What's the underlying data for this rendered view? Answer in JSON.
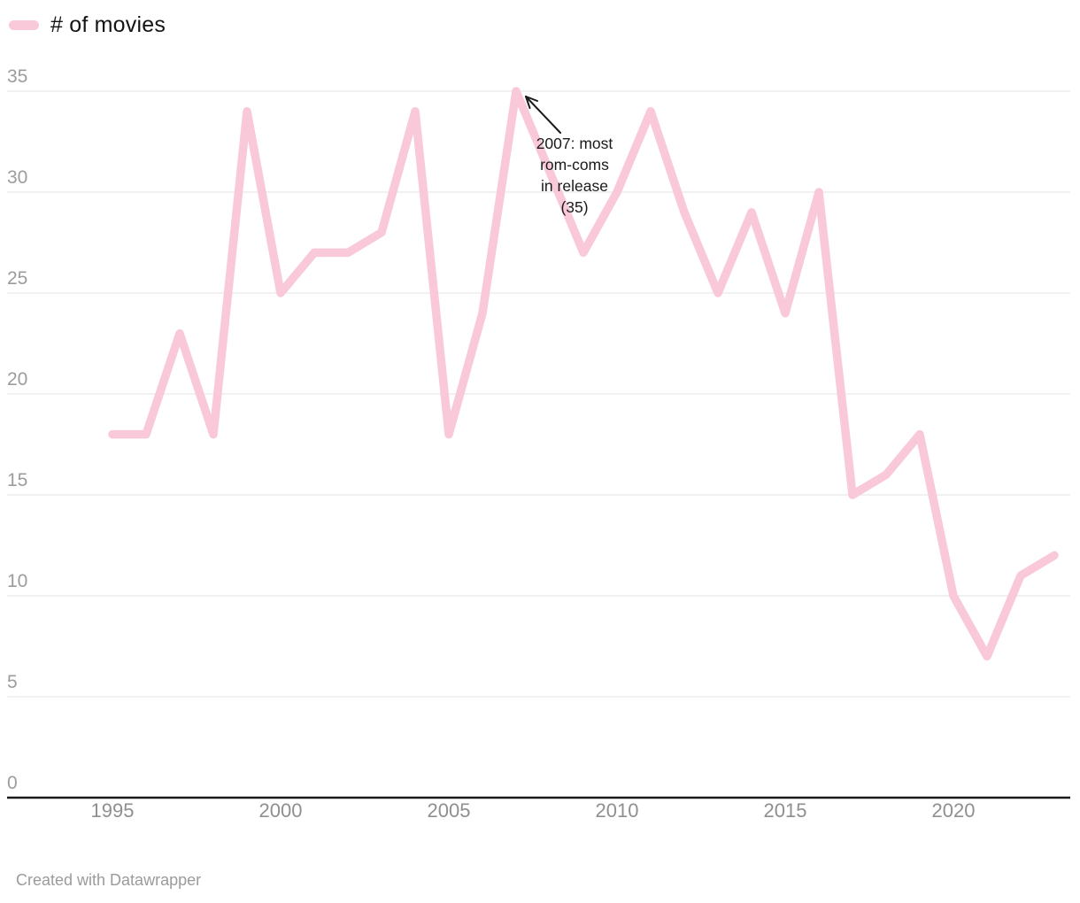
{
  "legend": {
    "label": "# of movies"
  },
  "annotation": {
    "lines": [
      "2007: most",
      "rom-coms",
      "in release",
      "(35)"
    ],
    "target_year": 2007,
    "target_value": 35
  },
  "footer": {
    "credit": "Created with Datawrapper"
  },
  "colors": {
    "line": "#f9c8d9",
    "grid": "#e3e3e3",
    "baseline": "#1a1a1a",
    "tick_text": "#9c9c9c",
    "annotation_text": "#1a1a1a"
  },
  "chart_data": {
    "type": "line",
    "title": "",
    "series_name": "# of movies",
    "x": [
      1995,
      1996,
      1997,
      1998,
      1999,
      2000,
      2001,
      2002,
      2003,
      2004,
      2005,
      2006,
      2007,
      2008,
      2009,
      2010,
      2011,
      2012,
      2013,
      2014,
      2015,
      2016,
      2017,
      2018,
      2019,
      2020,
      2021,
      2022,
      2023
    ],
    "values": [
      18,
      18,
      23,
      18,
      34,
      25,
      27,
      27,
      28,
      34,
      18,
      24,
      35,
      31,
      27,
      30,
      34,
      29,
      25,
      29,
      24,
      30,
      15,
      16,
      18,
      10,
      7,
      11,
      12
    ],
    "xlabel": "",
    "ylabel": "",
    "ylim": [
      0,
      35
    ],
    "y_ticks": [
      0,
      5,
      10,
      15,
      20,
      25,
      30,
      35
    ],
    "x_ticks": [
      1995,
      2000,
      2005,
      2010,
      2015,
      2020
    ],
    "grid": "horizontal",
    "legend_position": "top-left",
    "annotation": "2007: most rom-coms in release (35)"
  }
}
